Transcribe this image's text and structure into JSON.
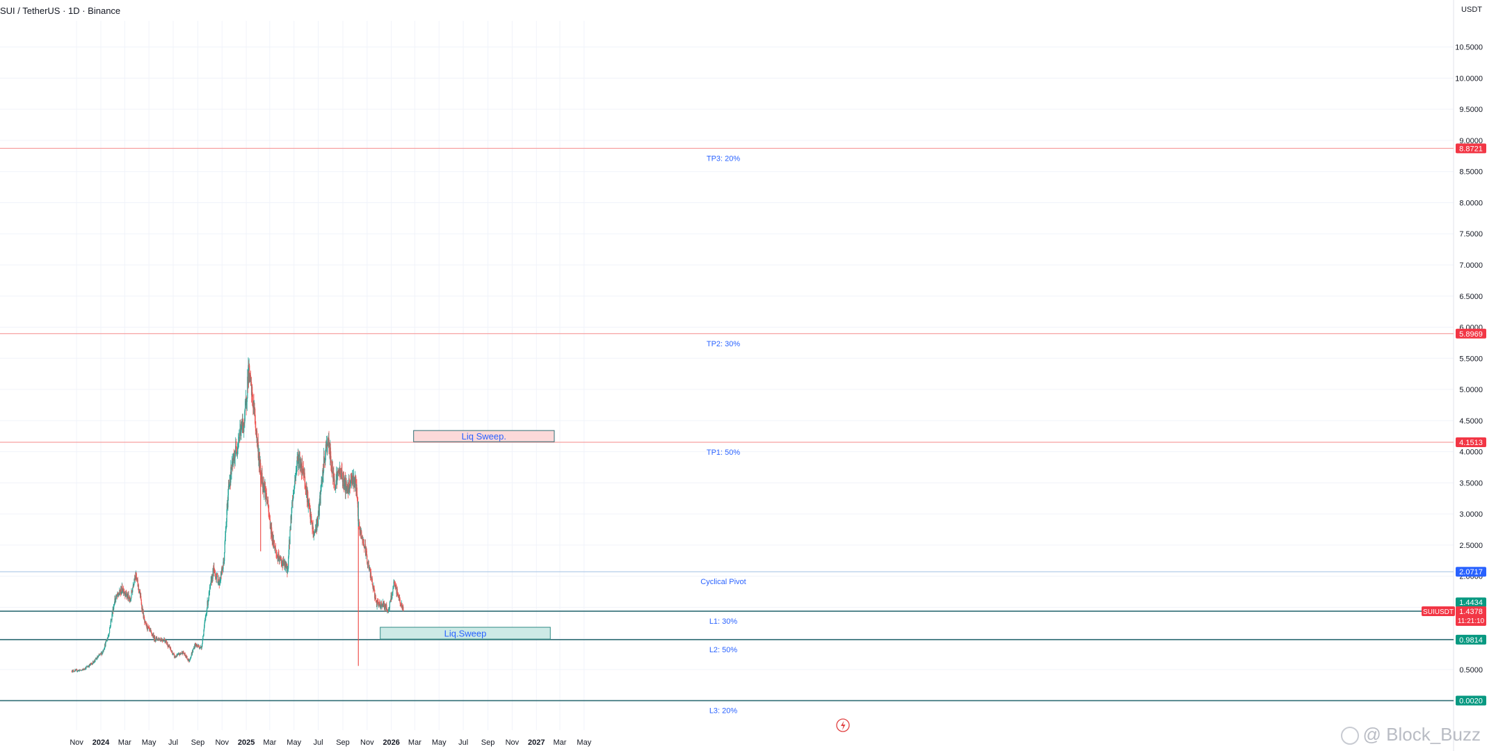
{
  "header": {
    "title": "SUI / TetherUS · 1D · Binance",
    "currency": "USDT"
  },
  "watermark": "@ Block_Buzz",
  "colors": {
    "up": "#26a69a",
    "down": "#ef5350",
    "tp_line": "#f7a1a1",
    "tp_badge": "#f23645",
    "pivot_line": "#b2cde8",
    "pivot_badge": "#2962ff",
    "l_line": "#2f6d74",
    "l_badge": "#089981",
    "grid": "#f0f3fa",
    "text_blue": "#2962ff"
  },
  "chart_data": {
    "type": "candlestick",
    "title": "SUI / TetherUS · 1D · Binance",
    "ylabel": "USDT",
    "ylim": [
      0.0,
      11.0
    ],
    "x_ticks": [
      "Nov",
      "2024",
      "Mar",
      "May",
      "Jul",
      "Sep",
      "Nov",
      "2025",
      "Mar",
      "May",
      "Jul",
      "Sep",
      "Nov",
      "2026",
      "Mar",
      "May",
      "Jul",
      "Sep",
      "Nov",
      "2027",
      "Mar",
      "May"
    ],
    "x_tick_dates": [
      "2023-11-01",
      "2024-01-01",
      "2024-03-01",
      "2024-05-01",
      "2024-07-01",
      "2024-09-01",
      "2024-11-01",
      "2025-01-01",
      "2025-03-01",
      "2025-05-01",
      "2025-07-01",
      "2025-09-01",
      "2025-11-01",
      "2026-01-01",
      "2026-03-01",
      "2026-05-01",
      "2026-07-01",
      "2026-09-01",
      "2026-11-01",
      "2027-01-01",
      "2027-03-01",
      "2027-05-01"
    ],
    "y_ticks": [
      "10.5000",
      "10.0000",
      "9.5000",
      "9.0000",
      "8.5000",
      "8.0000",
      "7.5000",
      "7.0000",
      "6.5000",
      "6.0000",
      "5.5000",
      "5.0000",
      "4.5000",
      "4.0000",
      "3.5000",
      "3.0000",
      "2.5000",
      "2.0000",
      "1.5000",
      "1.0000",
      "0.5000"
    ],
    "price_path": [
      [
        "2023-10-20",
        0.48
      ],
      [
        "2023-11-15",
        0.49
      ],
      [
        "2023-12-10",
        0.6
      ],
      [
        "2024-01-05",
        0.78
      ],
      [
        "2024-01-20",
        1.05
      ],
      [
        "2024-02-05",
        1.62
      ],
      [
        "2024-02-25",
        1.8
      ],
      [
        "2024-03-15",
        1.6
      ],
      [
        "2024-03-27",
        2.05
      ],
      [
        "2024-04-08",
        1.72
      ],
      [
        "2024-04-20",
        1.25
      ],
      [
        "2024-05-15",
        1.0
      ],
      [
        "2024-06-10",
        0.98
      ],
      [
        "2024-07-05",
        0.7
      ],
      [
        "2024-07-25",
        0.78
      ],
      [
        "2024-08-10",
        0.64
      ],
      [
        "2024-08-25",
        0.9
      ],
      [
        "2024-09-10",
        0.85
      ],
      [
        "2024-09-25",
        1.55
      ],
      [
        "2024-10-10",
        2.1
      ],
      [
        "2024-10-25",
        1.9
      ],
      [
        "2024-11-05",
        2.2
      ],
      [
        "2024-11-18",
        3.5
      ],
      [
        "2024-12-05",
        4.0
      ],
      [
        "2024-12-15",
        4.3
      ],
      [
        "2024-12-28",
        4.5
      ],
      [
        "2025-01-06",
        5.3
      ],
      [
        "2025-01-20",
        4.7
      ],
      [
        "2025-02-05",
        3.7
      ],
      [
        "2025-02-20",
        3.3
      ],
      [
        "2025-03-05",
        2.7
      ],
      [
        "2025-03-20",
        2.3
      ],
      [
        "2025-04-05",
        2.2
      ],
      [
        "2025-04-15",
        2.1
      ],
      [
        "2025-04-25",
        3.1
      ],
      [
        "2025-05-10",
        3.9
      ],
      [
        "2025-05-25",
        3.7
      ],
      [
        "2025-06-10",
        3.0
      ],
      [
        "2025-06-20",
        2.65
      ],
      [
        "2025-06-30",
        2.9
      ],
      [
        "2025-07-15",
        3.8
      ],
      [
        "2025-07-25",
        4.2
      ],
      [
        "2025-08-10",
        3.5
      ],
      [
        "2025-08-25",
        3.7
      ],
      [
        "2025-09-10",
        3.4
      ],
      [
        "2025-09-25",
        3.6
      ],
      [
        "2025-10-05",
        3.45
      ],
      [
        "2025-10-10",
        2.8
      ],
      [
        "2025-10-25",
        2.5
      ],
      [
        "2025-11-10",
        2.0
      ],
      [
        "2025-11-25",
        1.55
      ],
      [
        "2025-12-10",
        1.55
      ],
      [
        "2025-12-25",
        1.45
      ],
      [
        "2026-01-08",
        1.88
      ],
      [
        "2026-01-20",
        1.65
      ],
      [
        "2026-01-31",
        1.44
      ]
    ],
    "wicks": [
      {
        "date": "2025-10-10",
        "low": 0.56
      },
      {
        "date": "2025-10-10",
        "high": 3.2
      },
      {
        "date": "2025-01-06",
        "high": 5.35
      },
      {
        "date": "2025-02-06",
        "low": 2.4
      }
    ],
    "last_price": "1.4378",
    "countdown": "11:21:10",
    "symbol_tag": "SUIUSDT",
    "high_tag": "1.4434",
    "levels": [
      {
        "name": "TP3",
        "label": "TP3: 20%",
        "value": 8.8721,
        "badge": "8.8721",
        "style": "tp"
      },
      {
        "name": "TP2",
        "label": "TP2: 30%",
        "value": 5.8969,
        "badge": "5.8969",
        "style": "tp"
      },
      {
        "name": "TP1",
        "label": "TP1: 50%",
        "value": 4.1513,
        "badge": "4.1513",
        "style": "tp"
      },
      {
        "name": "pivot",
        "label": "Cyclical Pivot",
        "value": 2.0717,
        "badge": "2.0717",
        "style": "pivot"
      },
      {
        "name": "L1",
        "label": "L1: 30%",
        "value": 1.4378,
        "badge": "",
        "style": "l"
      },
      {
        "name": "L2",
        "label": "L2: 50%",
        "value": 0.9814,
        "badge": "0.9814",
        "style": "l"
      },
      {
        "name": "L3",
        "label": "L3: 20%",
        "value": 0.002,
        "badge": "0.0020",
        "style": "l"
      }
    ],
    "zones": [
      {
        "label": "Liq Sweep.",
        "from": "2026-02-26",
        "to": "2027-02-15",
        "low": 4.16,
        "high": 4.34,
        "style": "red"
      },
      {
        "label": "Liq.Sweep",
        "from": "2025-12-04",
        "to": "2027-02-05",
        "low": 0.99,
        "high": 1.18,
        "style": "green"
      }
    ]
  }
}
